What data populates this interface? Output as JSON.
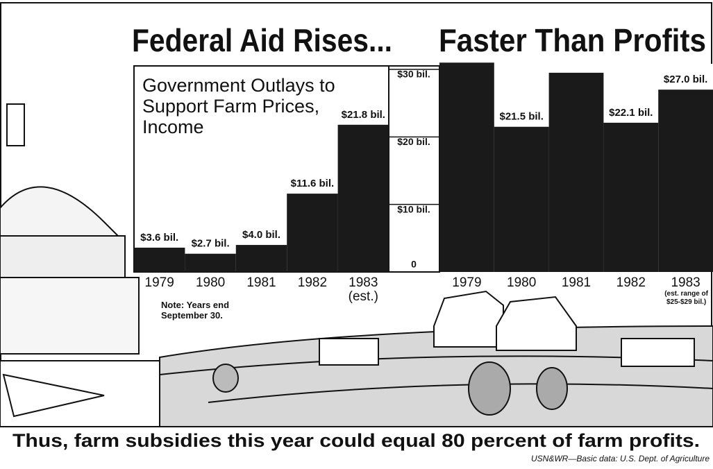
{
  "headline": {
    "left": "Federal Aid Rises...",
    "right": "Faster Than Profits"
  },
  "note": "Note: Years end September 30.",
  "footer": "Thus, farm subsidies this year could equal 80 percent of farm profits.",
  "source": "USN&WR—Basic data: U.S. Dept. of Agriculture",
  "chart_data": [
    {
      "type": "bar",
      "title": "Government Outlays to Support Farm Prices, Income",
      "categories": [
        "1979",
        "1980",
        "1981",
        "1982",
        "1983"
      ],
      "category_note": "(est.)",
      "values": [
        3.6,
        2.7,
        4.0,
        11.6,
        21.8
      ],
      "value_labels": [
        "$3.6 bil.",
        "$2.7 bil.",
        "$4.0 bil.",
        "$11.6 bil.",
        "$21.8 bil."
      ],
      "color": "#1a1a1a",
      "ylim": [
        0,
        30
      ],
      "yticks": [
        0,
        {
          "value": 10,
          "label": "$10 bil."
        },
        {
          "value": 20,
          "label": "$20 bil."
        },
        {
          "value": 30,
          "label": "$30 bil."
        }
      ]
    },
    {
      "type": "bar",
      "categories": [
        "1979",
        "1980",
        "1981",
        "1982",
        "1983"
      ],
      "category_note": "(est. range of $25-$29 bil.)",
      "values": [
        31,
        21.5,
        29.5,
        22.1,
        27.0
      ],
      "value_labels": [
        null,
        "$21.5 bil.",
        null,
        "$22.1 bil.",
        "$27.0 bil."
      ],
      "color": "#1a1a1a",
      "ylim": [
        0,
        30
      ]
    }
  ]
}
